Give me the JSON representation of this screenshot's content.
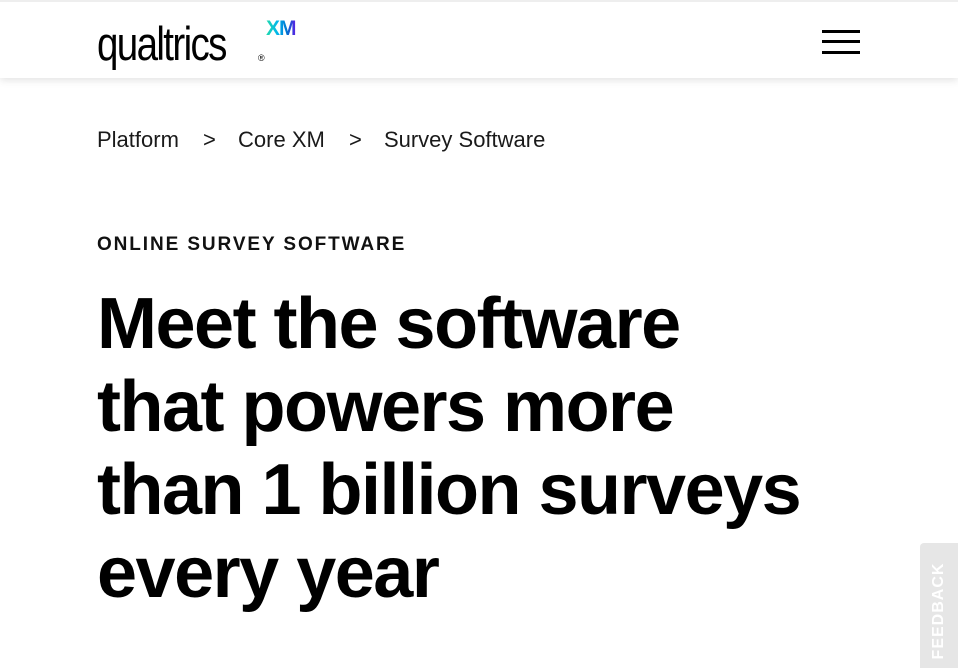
{
  "header": {
    "logo": {
      "wordmark": "qualtrics",
      "registered": "®",
      "suffix": "XM"
    },
    "menu_icon": "hamburger-menu-icon"
  },
  "breadcrumb": {
    "items": [
      "Platform",
      "Core XM",
      "Survey Software"
    ],
    "separator": ">"
  },
  "hero": {
    "eyebrow": "ONLINE SURVEY SOFTWARE",
    "headline_lines": [
      "Meet the software",
      "that powers more",
      "than 1 billion surveys",
      "every year"
    ]
  },
  "feedback": {
    "label": "FEEDBACK"
  },
  "colors": {
    "text": "#000000",
    "header_bg": "#ffffff",
    "feedback_bg": "#e6e6e6",
    "xm_gradient": [
      "#21dbaa",
      "#00b4ef",
      "#0072ce",
      "#5f1ae5"
    ]
  }
}
